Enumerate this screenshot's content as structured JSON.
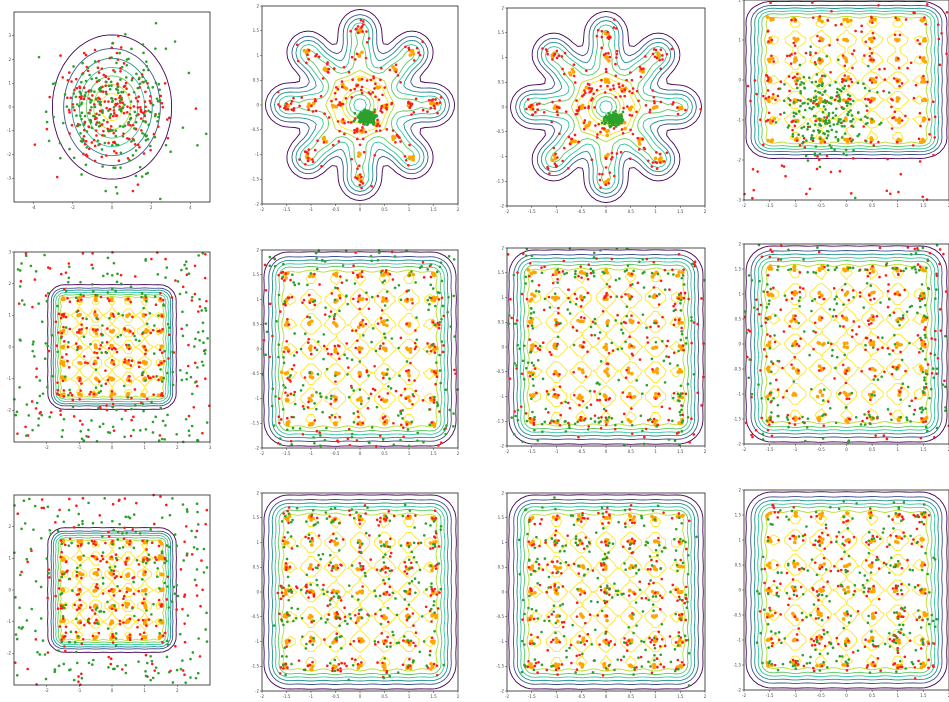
{
  "colors": {
    "real": "#2ca02c",
    "generated": "#ff1a1a",
    "mode": "#ffa500",
    "contours": [
      "#440154",
      "#3b528b",
      "#21918c",
      "#2ec7a0",
      "#5ec962",
      "#b5de2b",
      "#fde725"
    ]
  },
  "chart_data": [
    {
      "panel": 1,
      "type": "scatter",
      "grid": false,
      "mode_layout": "none",
      "scatter": "gaussian_cloud",
      "xlim": [
        -5,
        5
      ],
      "ylim": [
        -4,
        4
      ],
      "xticks": [
        -4,
        -2,
        0,
        2,
        4
      ],
      "yticks": [
        -3,
        -2,
        -1,
        0,
        1,
        2,
        3
      ]
    },
    {
      "panel": 2,
      "type": "scatter",
      "grid": false,
      "mode_layout": "radial_rays",
      "scatter": "collapsed_center",
      "xlim": [
        -2,
        2
      ],
      "ylim": [
        -2,
        2
      ],
      "xticks": [
        -2.0,
        -1.5,
        -1.0,
        -0.5,
        0.0,
        0.5,
        1.0,
        1.5,
        2.0
      ],
      "yticks": [
        -2.0,
        -1.5,
        -1.0,
        -0.5,
        0.0,
        0.5,
        1.0,
        1.5,
        2.0
      ]
    },
    {
      "panel": 3,
      "type": "scatter",
      "grid": false,
      "mode_layout": "radial_rays",
      "scatter": "collapsed_center",
      "xlim": [
        -2,
        2
      ],
      "ylim": [
        -2,
        2
      ],
      "xticks": [
        -2.0,
        -1.5,
        -1.0,
        -0.5,
        0.0,
        0.5,
        1.0,
        1.5,
        2.0
      ],
      "yticks": [
        -2.0,
        -1.5,
        -1.0,
        -0.5,
        0.0,
        0.5,
        1.0,
        1.5,
        2.0
      ]
    },
    {
      "panel": 4,
      "type": "scatter",
      "grid": false,
      "mode_layout": "grid",
      "scatter": "blob_mid_left",
      "xlim": [
        -2,
        2
      ],
      "ylim": [
        -3,
        2
      ],
      "xticks": [
        -2.0,
        -1.5,
        -1.0,
        -0.5,
        0.0,
        0.5,
        1.0,
        1.5,
        2.0
      ],
      "yticks": [
        -3,
        -2,
        -1,
        0,
        1,
        2
      ]
    },
    {
      "panel": 5,
      "type": "scatter",
      "grid": false,
      "mode_layout": "grid",
      "scatter": "diffuse",
      "xlim": [
        -3,
        3
      ],
      "ylim": [
        -3,
        3
      ],
      "xticks": [
        -2,
        -1,
        0,
        1,
        2,
        3
      ],
      "yticks": [
        -2,
        -1,
        0,
        1,
        2,
        3
      ]
    },
    {
      "panel": 6,
      "type": "scatter",
      "grid": false,
      "mode_layout": "grid",
      "scatter": "spread",
      "xlim": [
        -2,
        2
      ],
      "ylim": [
        -2,
        2
      ],
      "xticks": [
        -2.0,
        -1.5,
        -1.0,
        -0.5,
        0.0,
        0.5,
        1.0,
        1.5,
        2.0
      ],
      "yticks": [
        -2.0,
        -1.5,
        -1.0,
        -0.5,
        0.0,
        0.5,
        1.0,
        1.5,
        2.0
      ]
    },
    {
      "panel": 7,
      "type": "scatter",
      "grid": false,
      "mode_layout": "grid",
      "scatter": "spread_border",
      "xlim": [
        -2,
        2
      ],
      "ylim": [
        -2,
        2
      ],
      "xticks": [
        -2.0,
        -1.5,
        -1.0,
        -0.5,
        0.0,
        0.5,
        1.0,
        1.5,
        2.0
      ],
      "yticks": [
        -2.0,
        -1.5,
        -1.0,
        -0.5,
        0.0,
        0.5,
        1.0,
        1.5,
        2.0
      ]
    },
    {
      "panel": 8,
      "type": "scatter",
      "grid": false,
      "mode_layout": "grid",
      "scatter": "spread_border",
      "xlim": [
        -2,
        2
      ],
      "ylim": [
        -2,
        2
      ],
      "xticks": [
        -2.0,
        -1.5,
        -1.0,
        -0.5,
        0.0,
        0.5,
        1.0,
        1.5,
        2.0
      ],
      "yticks": [
        -2.0,
        -1.5,
        -1.0,
        -0.5,
        0.0,
        0.5,
        1.0,
        1.5,
        2.0
      ]
    },
    {
      "panel": 9,
      "type": "scatter",
      "grid": false,
      "mode_layout": "grid",
      "scatter": "diffuse",
      "xlim": [
        -3,
        3
      ],
      "ylim": [
        -3,
        3
      ],
      "xticks": [
        -2,
        -1,
        0,
        1,
        2
      ],
      "yticks": [
        -2,
        -1,
        0,
        1,
        2
      ]
    },
    {
      "panel": 10,
      "type": "scatter",
      "grid": false,
      "mode_layout": "grid",
      "scatter": "on_modes",
      "xlim": [
        -2,
        2
      ],
      "ylim": [
        -2,
        2
      ],
      "xticks": [
        -2.0,
        -1.5,
        -1.0,
        -0.5,
        0.0,
        0.5,
        1.0,
        1.5,
        2.0
      ],
      "yticks": [
        -2.0,
        -1.5,
        -1.0,
        -0.5,
        0.0,
        0.5,
        1.0,
        1.5,
        2.0
      ]
    },
    {
      "panel": 11,
      "type": "scatter",
      "grid": false,
      "mode_layout": "grid",
      "scatter": "on_modes",
      "xlim": [
        -2,
        2
      ],
      "ylim": [
        -2,
        2
      ],
      "xticks": [
        -2.0,
        -1.5,
        -1.0,
        -0.5,
        0.0,
        0.5,
        1.0,
        1.5,
        2.0
      ],
      "yticks": [
        -2.0,
        -1.5,
        -1.0,
        -0.5,
        0.0,
        0.5,
        1.0,
        1.5,
        2.0
      ]
    },
    {
      "panel": 12,
      "type": "scatter",
      "grid": false,
      "mode_layout": "grid",
      "scatter": "on_modes",
      "xlim": [
        -2,
        2
      ],
      "ylim": [
        -2,
        2
      ],
      "xticks": [
        -2.0,
        -1.5,
        -1.0,
        -0.5,
        0.0,
        0.5,
        1.0,
        1.5,
        2.0
      ],
      "yticks": [
        -2.0,
        -1.5,
        -1.0,
        -0.5,
        0.0,
        0.5,
        1.0,
        1.5,
        2.0
      ]
    }
  ]
}
